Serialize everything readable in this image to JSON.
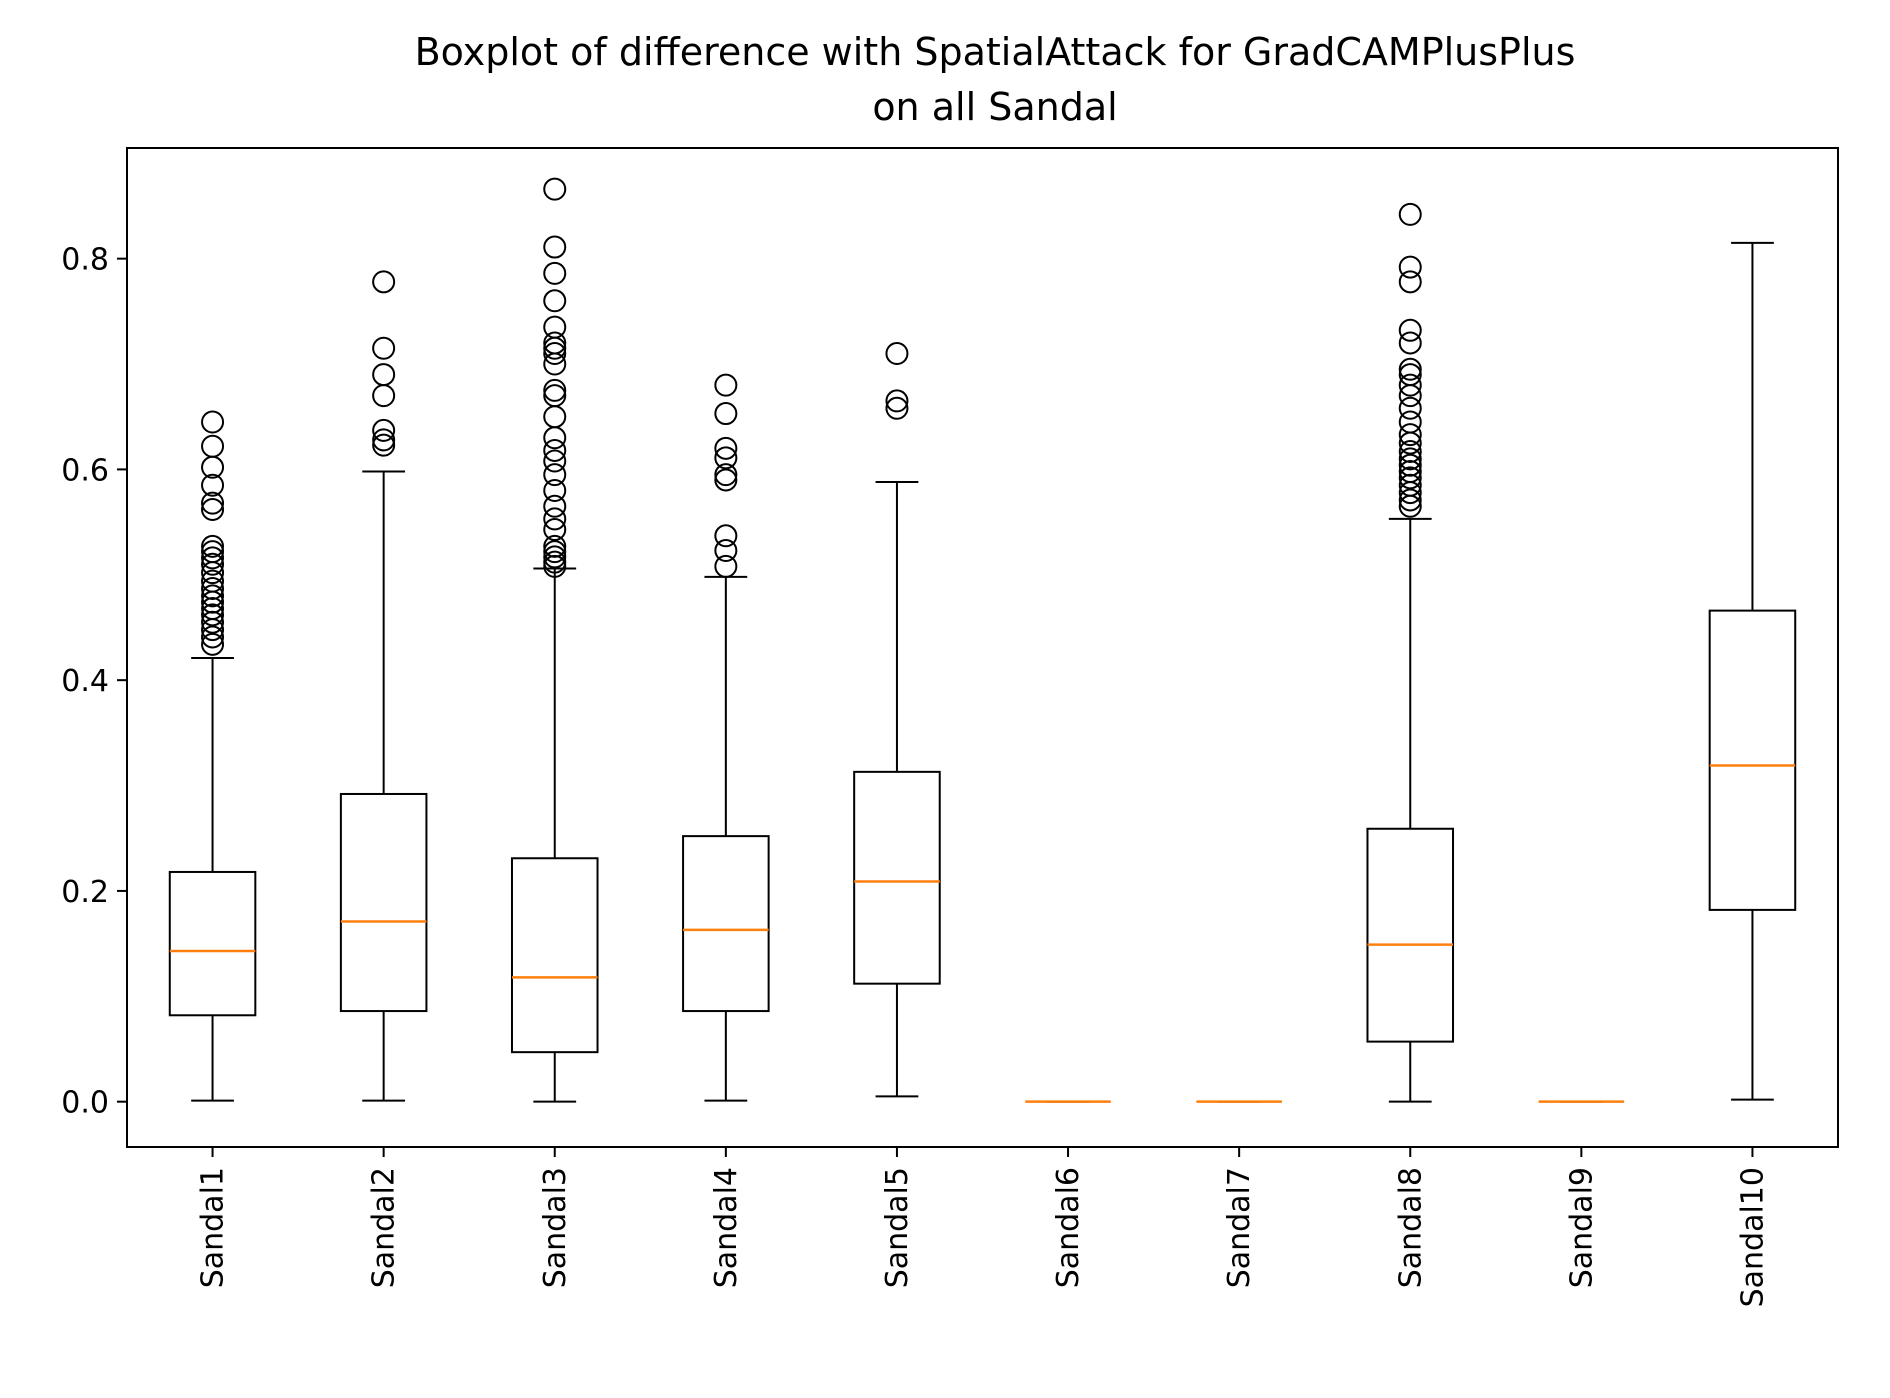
{
  "chart_data": {
    "type": "boxplot",
    "title_line1": "Boxplot of difference with SpatialAttack for GradCAMPlusPlus",
    "title_line2": "on all Sandal",
    "xlabel": "",
    "ylabel": "",
    "ylim": [
      -0.043,
      0.905
    ],
    "yticks": [
      0.0,
      0.2,
      0.4,
      0.6,
      0.8
    ],
    "ytick_labels": [
      "0.0",
      "0.2",
      "0.4",
      "0.6",
      "0.8"
    ],
    "grid": false,
    "colors": {
      "box": "#000000",
      "median": "#ff7f0e",
      "flier": "#000000"
    },
    "categories": [
      "Sandal1",
      "Sandal2",
      "Sandal3",
      "Sandal4",
      "Sandal5",
      "Sandal6",
      "Sandal7",
      "Sandal8",
      "Sandal9",
      "Sandal10"
    ],
    "boxes": [
      {
        "whislo": 0.001,
        "q1": 0.082,
        "med": 0.143,
        "q3": 0.218,
        "whishi": 0.421,
        "fliers": [
          0.434,
          0.441,
          0.448,
          0.455,
          0.462,
          0.468,
          0.474,
          0.48,
          0.487,
          0.494,
          0.502,
          0.51,
          0.516,
          0.522,
          0.527,
          0.562,
          0.568,
          0.585,
          0.602,
          0.622,
          0.645
        ]
      },
      {
        "whislo": 0.001,
        "q1": 0.086,
        "med": 0.171,
        "q3": 0.292,
        "whishi": 0.598,
        "fliers": [
          0.623,
          0.628,
          0.637,
          0.67,
          0.69,
          0.715,
          0.778
        ]
      },
      {
        "whislo": 0.0,
        "q1": 0.047,
        "med": 0.118,
        "q3": 0.231,
        "whishi": 0.506,
        "fliers": [
          0.508,
          0.512,
          0.517,
          0.522,
          0.527,
          0.543,
          0.553,
          0.565,
          0.58,
          0.595,
          0.608,
          0.618,
          0.63,
          0.65,
          0.67,
          0.675,
          0.7,
          0.71,
          0.715,
          0.72,
          0.735,
          0.76,
          0.786,
          0.811,
          0.866
        ]
      },
      {
        "whislo": 0.001,
        "q1": 0.086,
        "med": 0.163,
        "q3": 0.252,
        "whishi": 0.498,
        "fliers": [
          0.508,
          0.523,
          0.537,
          0.59,
          0.595,
          0.611,
          0.62,
          0.653,
          0.68
        ]
      },
      {
        "whislo": 0.005,
        "q1": 0.112,
        "med": 0.209,
        "q3": 0.313,
        "whishi": 0.588,
        "fliers": [
          0.658,
          0.665,
          0.71
        ]
      },
      {
        "whislo": 0.0,
        "q1": 0.0,
        "med": 0.0,
        "q3": 0.0,
        "whishi": 0.0,
        "fliers": []
      },
      {
        "whislo": 0.0,
        "q1": 0.0,
        "med": 0.0,
        "q3": 0.0,
        "whishi": 0.0,
        "fliers": []
      },
      {
        "whislo": 0.0,
        "q1": 0.057,
        "med": 0.149,
        "q3": 0.259,
        "whishi": 0.553,
        "fliers": [
          0.565,
          0.571,
          0.578,
          0.585,
          0.592,
          0.598,
          0.604,
          0.61,
          0.617,
          0.625,
          0.633,
          0.645,
          0.658,
          0.67,
          0.68,
          0.69,
          0.695,
          0.72,
          0.732,
          0.778,
          0.792,
          0.842
        ]
      },
      {
        "whislo": 0.0,
        "q1": 0.0,
        "med": 0.0,
        "q3": 0.0,
        "whishi": 0.0,
        "fliers": []
      },
      {
        "whislo": 0.002,
        "q1": 0.182,
        "med": 0.319,
        "q3": 0.466,
        "whishi": 0.815,
        "fliers": []
      }
    ]
  }
}
